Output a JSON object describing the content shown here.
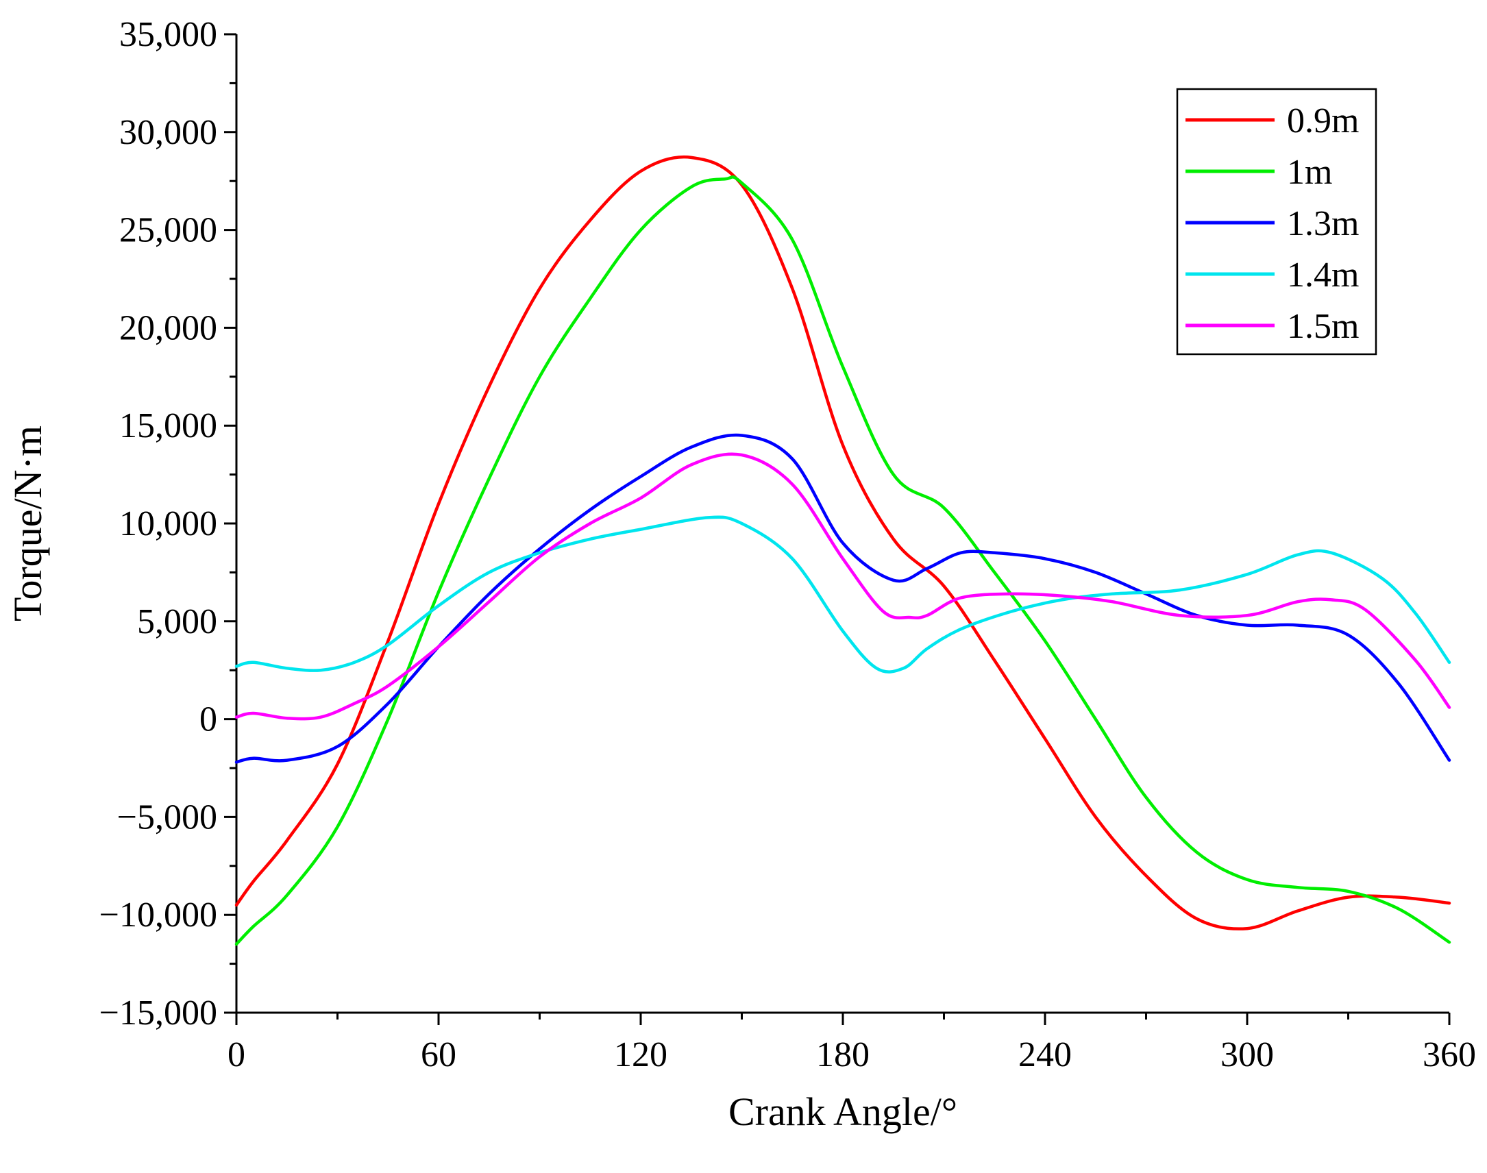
{
  "chart_data": {
    "type": "line",
    "title": "",
    "xlabel": "Crank Angle/°",
    "ylabel": "Torque/N·m",
    "xlim": [
      0,
      360
    ],
    "ylim": [
      -15000,
      35000
    ],
    "x_ticks": [
      0,
      60,
      120,
      180,
      240,
      300,
      360
    ],
    "x_tick_labels": [
      "0",
      "60",
      "120",
      "180",
      "240",
      "300",
      "360"
    ],
    "y_ticks": [
      -15000,
      -10000,
      -5000,
      0,
      5000,
      10000,
      15000,
      20000,
      25000,
      30000,
      35000
    ],
    "y_tick_labels": [
      "−15,000",
      "−10,000",
      "−5,000",
      "0",
      "5,000",
      "10,000",
      "15,000",
      "20,000",
      "25,000",
      "30,000",
      "35,000"
    ],
    "grid": false,
    "legend_position": "top-right",
    "series": [
      {
        "name": "0.9m",
        "color": "#ff0000",
        "x": [
          0,
          5,
          15,
          30,
          45,
          60,
          75,
          90,
          105,
          120,
          135,
          150,
          165,
          180,
          195,
          210,
          225,
          240,
          255,
          270,
          285,
          300,
          315,
          330,
          345,
          360
        ],
        "y": [
          -9500,
          -8300,
          -6200,
          -2300,
          4000,
          11000,
          17000,
          22000,
          25500,
          28000,
          28700,
          27300,
          22000,
          14000,
          9200,
          6800,
          3000,
          -1000,
          -5000,
          -8000,
          -10200,
          -10700,
          -9800,
          -9100,
          -9100,
          -9400
        ]
      },
      {
        "name": "1m",
        "color": "#00ee00",
        "x": [
          0,
          5,
          15,
          30,
          45,
          60,
          75,
          90,
          105,
          120,
          135,
          145,
          150,
          165,
          180,
          195,
          210,
          225,
          240,
          255,
          270,
          285,
          300,
          315,
          330,
          345,
          360
        ],
        "y": [
          -11500,
          -10600,
          -9000,
          -5500,
          0,
          6500,
          12300,
          17500,
          21500,
          25000,
          27200,
          27600,
          27400,
          24500,
          18000,
          12500,
          10800,
          7500,
          4000,
          0,
          -4000,
          -6800,
          -8200,
          -8600,
          -8800,
          -9700,
          -11400
        ]
      },
      {
        "name": "1.3m",
        "color": "#0000ff",
        "x": [
          0,
          5,
          15,
          30,
          45,
          60,
          75,
          90,
          105,
          120,
          135,
          150,
          165,
          180,
          195,
          205,
          215,
          225,
          240,
          255,
          270,
          285,
          300,
          315,
          330,
          345,
          360
        ],
        "y": [
          -2200,
          -2000,
          -2100,
          -1400,
          800,
          3700,
          6400,
          8700,
          10700,
          12400,
          13900,
          14500,
          13300,
          9000,
          7100,
          7700,
          8500,
          8500,
          8200,
          7500,
          6400,
          5300,
          4800,
          4800,
          4300,
          1800,
          -2100
        ]
      },
      {
        "name": "1.4m",
        "color": "#00e5ee",
        "x": [
          0,
          5,
          15,
          25,
          35,
          45,
          60,
          75,
          90,
          105,
          120,
          140,
          150,
          165,
          180,
          190,
          198,
          205,
          215,
          230,
          245,
          260,
          280,
          300,
          315,
          325,
          340,
          350,
          360
        ],
        "y": [
          2700,
          2900,
          2600,
          2500,
          2900,
          3800,
          5800,
          7500,
          8500,
          9200,
          9700,
          10300,
          10000,
          8200,
          4500,
          2600,
          2600,
          3600,
          4600,
          5500,
          6100,
          6400,
          6600,
          7400,
          8400,
          8500,
          7200,
          5400,
          2900
        ]
      },
      {
        "name": "1.5m",
        "color": "#ff00ff",
        "x": [
          0,
          5,
          15,
          25,
          35,
          45,
          60,
          75,
          90,
          105,
          120,
          135,
          150,
          165,
          180,
          192,
          200,
          205,
          215,
          230,
          245,
          260,
          280,
          300,
          315,
          325,
          335,
          350,
          360
        ],
        "y": [
          100,
          300,
          50,
          100,
          800,
          1700,
          3700,
          6000,
          8300,
          10000,
          11300,
          13000,
          13500,
          12000,
          8200,
          5500,
          5200,
          5300,
          6200,
          6400,
          6300,
          6000,
          5300,
          5300,
          6000,
          6100,
          5600,
          3000,
          600
        ]
      }
    ]
  }
}
